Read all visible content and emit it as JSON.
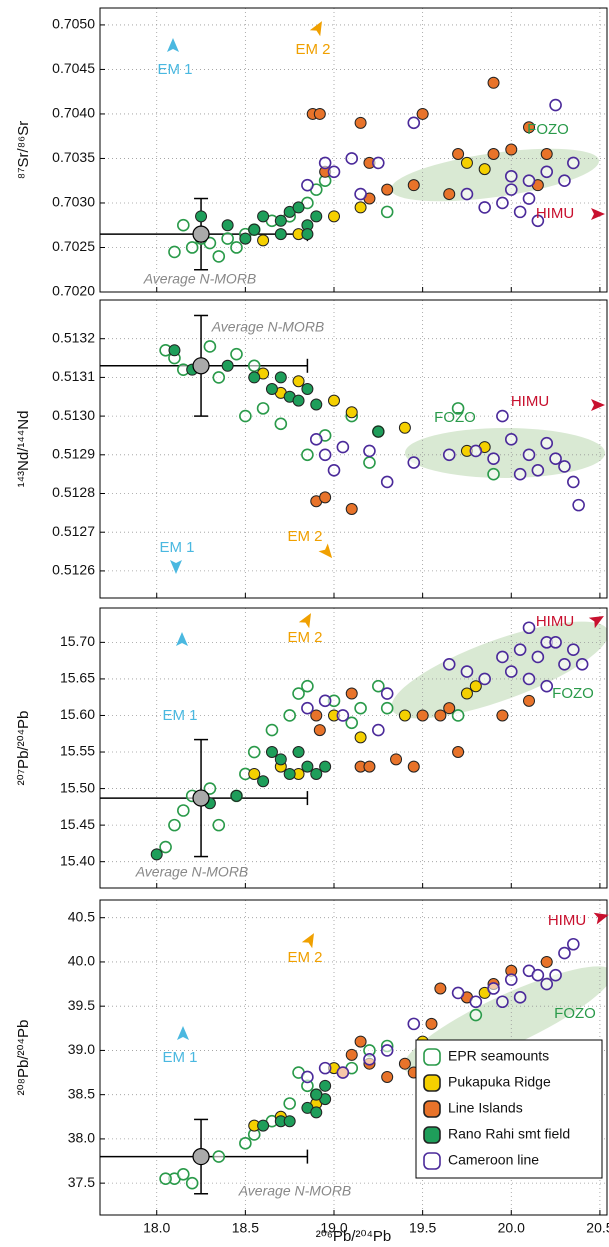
{
  "chart_data": [
    {
      "type": "scatter",
      "ylabel": "⁸⁷Sr/⁸⁶Sr",
      "xlim": [
        17.68,
        20.54
      ],
      "xticks": [
        18,
        18.5,
        19,
        19.5,
        20,
        20.5
      ],
      "ylim": [
        0.702,
        0.70519
      ],
      "yticks": [
        {
          "value": 0.702,
          "label": "0.7020"
        },
        0.7025,
        {
          "value": 0.703,
          "label": "0.7030"
        },
        0.7035,
        {
          "value": 0.704,
          "label": "0.7040"
        },
        0.7045,
        {
          "value": 0.705,
          "label": "0.7050"
        }
      ],
      "grid": true,
      "annotations": [
        {
          "text": "EM 1",
          "color": "#4ab8e0"
        },
        {
          "text": "EM 2",
          "color": "#f0a000"
        },
        {
          "text": "FOZO",
          "color": "#2a9a4a"
        },
        {
          "text": "HIMU",
          "color": "#c8102e"
        }
      ],
      "reference": {
        "name": "Average N-MORB",
        "x": 18.25,
        "y": 0.70265,
        "xerr": 0.6,
        "yerr": 0.0004
      },
      "series": [
        {
          "color": "#2a9a4a",
          "hollow": true,
          "x": [
            18.1,
            18.15,
            18.2,
            18.3,
            18.35,
            18.4,
            18.5,
            18.55,
            18.65,
            18.75,
            18.85,
            18.9,
            18.95,
            19.3,
            18.45,
            18.25
          ],
          "y": [
            0.70245,
            0.70275,
            0.7025,
            0.70255,
            0.7024,
            0.7026,
            0.70265,
            0.7027,
            0.7028,
            0.70285,
            0.703,
            0.70315,
            0.70325,
            0.7029,
            0.7025,
            0.7026
          ]
        },
        {
          "color": "#f5d000",
          "hollow": false,
          "x": [
            18.6,
            18.8,
            19.0,
            19.15,
            19.75,
            19.85
          ],
          "y": [
            0.70258,
            0.70265,
            0.70285,
            0.70295,
            0.70345,
            0.70338
          ]
        },
        {
          "color": "#e8732a",
          "hollow": false,
          "x": [
            18.88,
            18.92,
            19.15,
            19.2,
            19.2,
            19.3,
            19.45,
            19.5,
            19.65,
            19.7,
            19.9,
            20.0,
            20.1,
            20.15,
            20.2,
            19.9,
            18.95
          ],
          "y": [
            0.704,
            0.704,
            0.7039,
            0.70305,
            0.70345,
            0.70315,
            0.7032,
            0.704,
            0.7031,
            0.70355,
            0.70355,
            0.7036,
            0.70385,
            0.7032,
            0.70355,
            0.70435,
            0.70335
          ]
        },
        {
          "color": "#1e9e5a",
          "hollow": false,
          "x": [
            18.25,
            18.4,
            18.55,
            18.6,
            18.7,
            18.75,
            18.8,
            18.85,
            18.9,
            18.7,
            18.85,
            18.5
          ],
          "y": [
            0.70285,
            0.70275,
            0.7027,
            0.70285,
            0.7028,
            0.7029,
            0.70295,
            0.70275,
            0.70285,
            0.70265,
            0.70265,
            0.7026
          ]
        },
        {
          "color": "#4b2a9a",
          "hollow": true,
          "x": [
            18.85,
            18.95,
            19.0,
            19.1,
            19.15,
            19.25,
            19.45,
            19.75,
            19.85,
            19.95,
            20.0,
            20.05,
            20.1,
            20.15,
            20.2,
            20.25,
            20.3,
            20.35,
            20.0,
            20.1
          ],
          "y": [
            0.7032,
            0.70345,
            0.70335,
            0.7035,
            0.7031,
            0.70345,
            0.7039,
            0.7031,
            0.70295,
            0.703,
            0.70315,
            0.7029,
            0.70325,
            0.7028,
            0.70335,
            0.7041,
            0.70325,
            0.70345,
            0.7033,
            0.70305
          ]
        }
      ]
    },
    {
      "type": "scatter",
      "ylabel": "¹⁴³Nd/¹⁴⁴Nd",
      "xlim": [
        17.68,
        20.54
      ],
      "xticks": [
        18,
        18.5,
        19,
        19.5,
        20,
        20.5
      ],
      "ylim": [
        0.51253,
        0.5133
      ],
      "yticks": [
        0.5126,
        0.5127,
        0.5128,
        0.5129,
        {
          "value": 0.513,
          "label": "0.5130"
        },
        0.5131,
        0.5132
      ],
      "grid": true,
      "annotations": [
        {
          "text": "EM 1",
          "color": "#4ab8e0"
        },
        {
          "text": "EM 2",
          "color": "#f0a000"
        },
        {
          "text": "FOZO",
          "color": "#2a9a4a"
        },
        {
          "text": "HIMU",
          "color": "#c8102e"
        }
      ],
      "reference": {
        "name": "Average N-MORB",
        "x": 18.25,
        "y": 0.51313,
        "xerr": 0.6,
        "yerr": 0.00013
      },
      "series": [
        {
          "color": "#2a9a4a",
          "hollow": true,
          "x": [
            18.05,
            18.1,
            18.15,
            18.3,
            18.35,
            18.45,
            18.5,
            18.6,
            18.7,
            18.85,
            18.95,
            19.1,
            19.2,
            19.25,
            19.9,
            19.7,
            18.55
          ],
          "y": [
            0.51317,
            0.51315,
            0.51312,
            0.51318,
            0.5131,
            0.51316,
            0.513,
            0.51302,
            0.51298,
            0.5129,
            0.51295,
            0.513,
            0.51288,
            0.51296,
            0.51285,
            0.51302,
            0.51313
          ]
        },
        {
          "color": "#f5d000",
          "hollow": false,
          "x": [
            18.6,
            18.7,
            18.8,
            19.0,
            19.1,
            19.4,
            19.75,
            19.85
          ],
          "y": [
            0.51311,
            0.51306,
            0.51309,
            0.51304,
            0.51301,
            0.51297,
            0.51291,
            0.51292
          ]
        },
        {
          "color": "#e8732a",
          "hollow": false,
          "x": [
            18.9,
            18.95,
            19.1,
            19.25
          ],
          "y": [
            0.51278,
            0.51279,
            0.51276,
            0.51296
          ]
        },
        {
          "color": "#1e9e5a",
          "hollow": false,
          "x": [
            18.1,
            18.2,
            18.4,
            18.55,
            18.65,
            18.7,
            18.75,
            18.8,
            18.85,
            18.9,
            19.25
          ],
          "y": [
            0.51317,
            0.51312,
            0.51313,
            0.5131,
            0.51307,
            0.5131,
            0.51305,
            0.51304,
            0.51307,
            0.51303,
            0.51296
          ]
        },
        {
          "color": "#4b2a9a",
          "hollow": true,
          "x": [
            18.9,
            18.95,
            19.0,
            19.05,
            19.2,
            19.3,
            19.45,
            19.65,
            19.8,
            19.9,
            20.0,
            20.05,
            20.1,
            20.15,
            20.2,
            20.25,
            20.3,
            20.35,
            20.38,
            19.95
          ],
          "y": [
            0.51294,
            0.5129,
            0.51286,
            0.51292,
            0.51291,
            0.51283,
            0.51288,
            0.5129,
            0.51291,
            0.51289,
            0.51294,
            0.51285,
            0.5129,
            0.51286,
            0.51293,
            0.51289,
            0.51287,
            0.51283,
            0.51277,
            0.513
          ]
        }
      ]
    },
    {
      "type": "scatter",
      "ylabel": "²⁰⁷Pb/²⁰⁴Pb",
      "xlim": [
        17.68,
        20.54
      ],
      "xticks": [
        18,
        18.5,
        19,
        19.5,
        20,
        20.5
      ],
      "ylim": [
        15.364,
        15.747
      ],
      "yticks": [
        {
          "value": 15.4,
          "label": "15.40"
        },
        15.45,
        {
          "value": 15.5,
          "label": "15.50"
        },
        15.55,
        {
          "value": 15.6,
          "label": "15.60"
        },
        15.65,
        {
          "value": 15.7,
          "label": "15.70"
        }
      ],
      "grid": true,
      "annotations": [
        {
          "text": "EM 1",
          "color": "#4ab8e0"
        },
        {
          "text": "EM 2",
          "color": "#f0a000"
        },
        {
          "text": "FOZO",
          "color": "#2a9a4a"
        },
        {
          "text": "HIMU",
          "color": "#c8102e"
        }
      ],
      "reference": {
        "name": "Average N-MORB",
        "x": 18.25,
        "y": 15.487,
        "xerr": 0.6,
        "yerr": 0.08
      },
      "series": [
        {
          "color": "#2a9a4a",
          "hollow": true,
          "x": [
            18.05,
            18.1,
            18.15,
            18.2,
            18.3,
            18.35,
            18.45,
            18.5,
            18.55,
            18.65,
            18.75,
            18.8,
            18.85,
            19.0,
            19.1,
            19.15,
            19.25,
            19.3,
            19.7
          ],
          "y": [
            15.42,
            15.45,
            15.47,
            15.49,
            15.5,
            15.45,
            15.49,
            15.52,
            15.55,
            15.58,
            15.6,
            15.63,
            15.64,
            15.62,
            15.59,
            15.61,
            15.64,
            15.61,
            15.6
          ]
        },
        {
          "color": "#f5d000",
          "hollow": false,
          "x": [
            18.55,
            18.7,
            18.8,
            19.0,
            19.15,
            19.4,
            19.75,
            19.8
          ],
          "y": [
            15.52,
            15.53,
            15.52,
            15.6,
            15.57,
            15.6,
            15.63,
            15.64
          ]
        },
        {
          "color": "#e8732a",
          "hollow": false,
          "x": [
            18.9,
            18.92,
            19.1,
            19.15,
            19.2,
            19.35,
            19.45,
            19.5,
            19.65,
            19.7,
            19.95,
            20.1,
            19.6
          ],
          "y": [
            15.6,
            15.58,
            15.63,
            15.53,
            15.53,
            15.54,
            15.53,
            15.6,
            15.61,
            15.55,
            15.6,
            15.62,
            15.6
          ]
        },
        {
          "color": "#1e9e5a",
          "hollow": false,
          "x": [
            18.0,
            18.3,
            18.45,
            18.6,
            18.7,
            18.75,
            18.8,
            18.85,
            18.9,
            18.95,
            18.65
          ],
          "y": [
            15.41,
            15.48,
            15.49,
            15.51,
            15.54,
            15.52,
            15.55,
            15.53,
            15.52,
            15.53,
            15.55
          ]
        },
        {
          "color": "#4b2a9a",
          "hollow": true,
          "x": [
            18.85,
            18.95,
            19.05,
            19.25,
            19.3,
            19.65,
            19.75,
            19.85,
            19.95,
            20.0,
            20.05,
            20.1,
            20.15,
            20.2,
            20.25,
            20.3,
            20.35,
            20.4,
            20.1,
            20.2
          ],
          "y": [
            15.61,
            15.62,
            15.6,
            15.58,
            15.63,
            15.67,
            15.66,
            15.65,
            15.68,
            15.66,
            15.69,
            15.72,
            15.68,
            15.7,
            15.7,
            15.67,
            15.69,
            15.67,
            15.65,
            15.64
          ]
        }
      ]
    },
    {
      "type": "scatter",
      "ylabel": "²⁰⁸Pb/²⁰⁴Pb",
      "xlabel": "²⁰⁶Pb/²⁰⁴Pb",
      "xlim": [
        17.68,
        20.54
      ],
      "xticks": [
        {
          "value": 18,
          "label": "18.0"
        },
        18.5,
        {
          "value": 19,
          "label": "19.0"
        },
        19.5,
        {
          "value": 20,
          "label": "20.0"
        },
        20.5
      ],
      "ylim": [
        37.14,
        40.7
      ],
      "yticks": [
        37.5,
        {
          "value": 38,
          "label": "38.0"
        },
        38.5,
        {
          "value": 39,
          "label": "39.0"
        },
        39.5,
        {
          "value": 40,
          "label": "40.0"
        },
        40.5
      ],
      "grid": true,
      "legend": "lower right",
      "annotations": [
        {
          "text": "EM 1",
          "color": "#4ab8e0"
        },
        {
          "text": "EM 2",
          "color": "#f0a000"
        },
        {
          "text": "FOZO",
          "color": "#2a9a4a"
        },
        {
          "text": "HIMU",
          "color": "#c8102e"
        }
      ],
      "reference": {
        "name": "Average N-MORB",
        "x": 18.25,
        "y": 37.8,
        "xerr": 0.6,
        "yerr": 0.42
      },
      "series": [
        {
          "name": "EPR seamounts",
          "color": "#2a9a4a",
          "hollow": true,
          "x": [
            18.1,
            18.15,
            18.2,
            18.35,
            18.5,
            18.55,
            18.65,
            18.75,
            18.8,
            18.85,
            18.9,
            19.1,
            19.2,
            19.3,
            19.8,
            18.05
          ],
          "y": [
            37.55,
            37.6,
            37.5,
            37.8,
            37.95,
            38.05,
            38.2,
            38.4,
            38.75,
            38.6,
            38.5,
            38.8,
            39.0,
            39.05,
            39.4,
            37.55
          ]
        },
        {
          "name": "Pukapuka Ridge",
          "color": "#f5d000",
          "hollow": false,
          "x": [
            18.55,
            18.7,
            18.9,
            19.0,
            19.5,
            19.75,
            19.85
          ],
          "y": [
            38.15,
            38.25,
            38.4,
            38.8,
            39.1,
            39.6,
            39.65
          ]
        },
        {
          "name": "Line Islands",
          "color": "#e8732a",
          "hollow": false,
          "x": [
            19.05,
            19.1,
            19.15,
            19.2,
            19.3,
            19.4,
            19.55,
            19.55,
            19.6,
            19.75,
            19.9,
            20.0,
            20.2,
            19.45
          ],
          "y": [
            38.75,
            38.95,
            39.1,
            38.85,
            38.7,
            38.85,
            39.05,
            39.3,
            39.7,
            39.6,
            39.75,
            39.9,
            40.0,
            38.75
          ]
        },
        {
          "name": "Rano Rahi smt field",
          "color": "#1e9e5a",
          "hollow": false,
          "x": [
            18.6,
            18.7,
            18.75,
            18.85,
            18.9,
            18.95,
            18.95,
            18.9
          ],
          "y": [
            38.15,
            38.2,
            38.2,
            38.35,
            38.3,
            38.45,
            38.6,
            38.5
          ]
        },
        {
          "name": "Cameroon line",
          "color": "#4b2a9a",
          "hollow": true,
          "x": [
            18.85,
            18.95,
            19.05,
            19.2,
            19.3,
            19.45,
            19.7,
            19.8,
            19.9,
            20.0,
            20.05,
            20.1,
            20.2,
            20.25,
            20.3,
            20.35,
            20.15,
            19.95
          ],
          "y": [
            38.7,
            38.8,
            38.75,
            38.9,
            39.0,
            39.3,
            39.65,
            39.55,
            39.7,
            39.8,
            39.6,
            39.9,
            39.75,
            39.85,
            40.1,
            40.2,
            39.85,
            39.55
          ]
        }
      ]
    }
  ]
}
